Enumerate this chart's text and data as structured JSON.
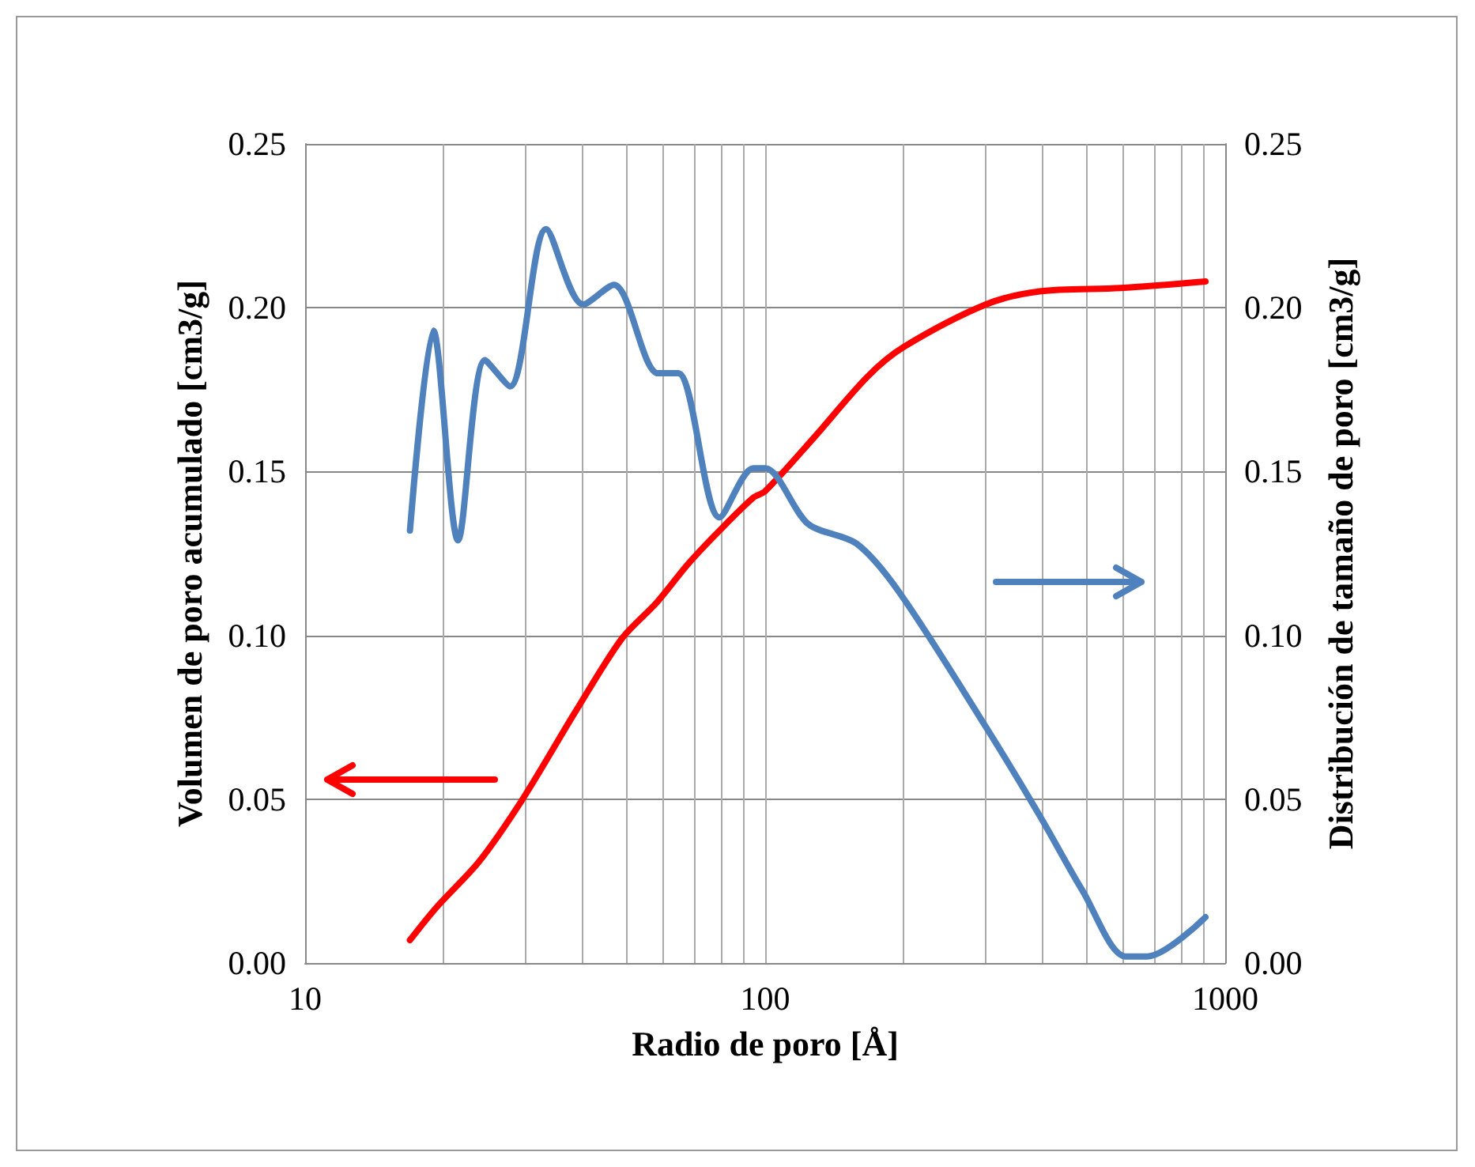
{
  "chart_data": {
    "type": "line",
    "xlabel": "Radio de poro [Å]",
    "ylabel": "Volumen de poro acumulado [cm3/g]",
    "y2label": "Distribución de tamaño de poro [cm3/g]",
    "log": "x",
    "grid": true,
    "marker": "none",
    "line_style": "solid",
    "xlim": [
      10,
      1000
    ],
    "xticks": [
      10,
      {
        "value": 20,
        "label": null
      },
      {
        "value": 30,
        "label": null
      },
      {
        "value": 40,
        "label": null
      },
      {
        "value": 50,
        "label": null
      },
      {
        "value": 60,
        "label": null
      },
      {
        "value": 70,
        "label": null
      },
      {
        "value": 80,
        "label": null
      },
      {
        "value": 90,
        "label": null
      },
      100,
      {
        "value": 200,
        "label": null
      },
      {
        "value": 300,
        "label": null
      },
      {
        "value": 400,
        "label": null
      },
      {
        "value": 500,
        "label": null
      },
      {
        "value": 600,
        "label": null
      },
      {
        "value": 700,
        "label": null
      },
      {
        "value": 800,
        "label": null
      },
      {
        "value": 900,
        "label": null
      },
      1000
    ],
    "ylim": [
      0,
      0.25
    ],
    "yticks": [
      {
        "value": 0,
        "label": "0.00"
      },
      {
        "value": 0.05,
        "label": "0.05"
      },
      {
        "value": 0.1,
        "label": "0.10"
      },
      {
        "value": 0.15,
        "label": "0.15"
      },
      {
        "value": 0.2,
        "label": "0.20"
      },
      {
        "value": 0.25,
        "label": "0.25"
      }
    ],
    "y2lim": [
      0,
      0.25
    ],
    "y2ticks": [
      {
        "value": 0,
        "label": "0.00"
      },
      {
        "value": 0.05,
        "label": "0.05"
      },
      {
        "value": 0.1,
        "label": "0.10"
      },
      {
        "value": 0.15,
        "label": "0.15"
      },
      {
        "value": 0.2,
        "label": "0.20"
      },
      {
        "value": 0.25,
        "label": "0.25"
      }
    ],
    "series": [
      {
        "color": "#ff0000",
        "x": [
          16.9,
          19.3,
          23.9,
          29.7,
          38.8,
          48.8,
          58.1,
          68.2,
          79.6,
          94.2,
          100,
          127,
          167,
          200,
          302,
          395,
          592,
          906
        ],
        "values": [
          0.007,
          0.017,
          0.031,
          0.05,
          0.077,
          0.099,
          0.11,
          0.122,
          0.132,
          0.142,
          0.144,
          0.16,
          0.179,
          0.188,
          0.201,
          0.205,
          0.206,
          0.208
        ]
      },
      {
        "color": "#4f81bd",
        "axis": "y2",
        "x": [
          16.9,
          19.0,
          21.5,
          24.6,
          27.9,
          33.4,
          40.2,
          46.9,
          58.5,
          64.7,
          79.6,
          94.2,
          100,
          124,
          158,
          196,
          302,
          395,
          490,
          608,
          676,
          906
        ],
        "values": [
          0.132,
          0.193,
          0.129,
          0.184,
          0.176,
          0.224,
          0.201,
          0.207,
          0.18,
          0.18,
          0.136,
          0.151,
          0.151,
          0.134,
          0.128,
          0.113,
          0.072,
          0.045,
          0.022,
          0.002,
          0.002,
          0.014
        ]
      }
    ]
  }
}
